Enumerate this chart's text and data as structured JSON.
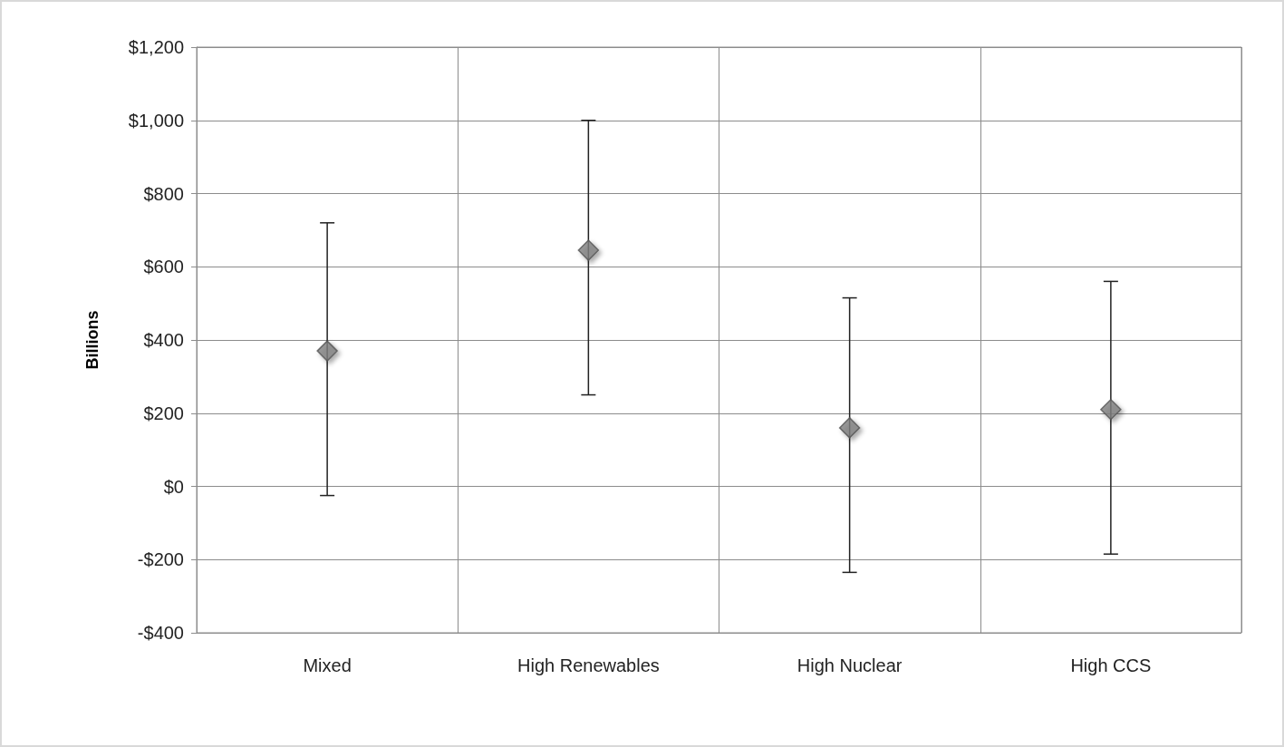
{
  "chart_data": {
    "type": "scatter",
    "ylabel": "Billions",
    "categories": [
      "Mixed",
      "High Renewables",
      "High Nuclear",
      "High CCS"
    ],
    "values": [
      370,
      645,
      160,
      210
    ],
    "errors": [
      [
        -25,
        720
      ],
      [
        250,
        1000
      ],
      [
        -235,
        515
      ],
      [
        -185,
        560
      ]
    ],
    "color": "#7f7f7f",
    "marker": "diamond",
    "ylim": [
      -400,
      1200
    ],
    "yticks": [
      {
        "value": -400,
        "label": "-$400"
      },
      {
        "value": -200,
        "label": "-$200"
      },
      {
        "value": 0,
        "label": "$0"
      },
      {
        "value": 200,
        "label": "$200"
      },
      {
        "value": 400,
        "label": "$400"
      },
      {
        "value": 600,
        "label": "$600"
      },
      {
        "value": 800,
        "label": "$800"
      },
      {
        "value": 1000,
        "label": "$1,000"
      },
      {
        "value": 1200,
        "label": "$1,200"
      }
    ],
    "grid": true
  }
}
